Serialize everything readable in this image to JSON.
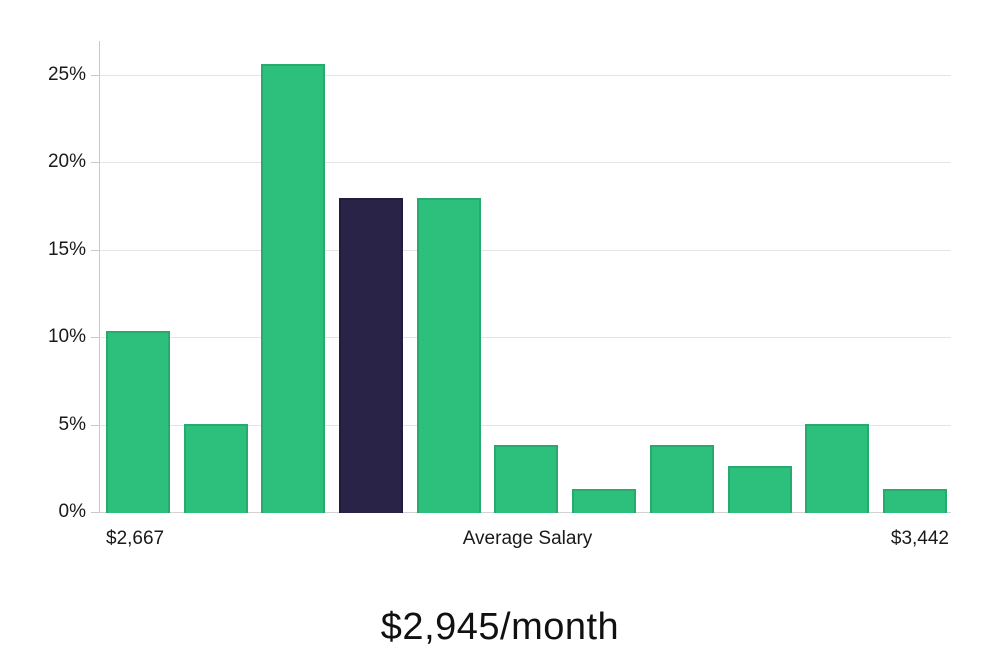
{
  "chart_data": {
    "type": "bar",
    "subtype": "histogram",
    "title": "$2,945/month",
    "values": [
      10.4,
      5.1,
      25.7,
      18.0,
      18.0,
      3.9,
      1.4,
      3.9,
      2.7,
      5.1,
      1.4
    ],
    "highlighted_index": 3,
    "ylim": [
      0,
      27
    ],
    "y_tick_values": [
      0,
      5,
      10,
      15,
      20,
      25
    ],
    "y_tick_labels": [
      "0%",
      "5%",
      "10%",
      "15%",
      "20%",
      "25%"
    ],
    "x_axis_labels": {
      "min": "$2,667",
      "center": "Average Salary",
      "max": "$3,442"
    },
    "grid": "horizontal",
    "legend": "none",
    "colors": {
      "bar_fill": "#2dbf7c",
      "bar_border": "#28aa6e",
      "highlight_fill": "#292347",
      "highlight_border": "#221d3c",
      "gridline": "#e4e4e4",
      "baseline": "#d2d2d2",
      "axis": "#c9c9c9",
      "label_text": "#1a1a1a",
      "title_text": "#111111"
    }
  }
}
